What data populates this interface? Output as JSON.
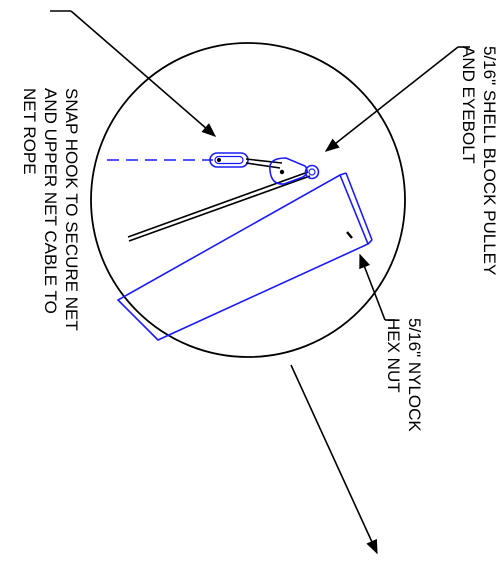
{
  "colors": {
    "background": "#ffffff",
    "ink": "#000000",
    "blue": "#1a1aff"
  },
  "callouts": {
    "snap_hook": {
      "lines": [
        "SNAP HOOK TO SECURE NET",
        "AND UPPER NET CABLE TO",
        "NET ROPE"
      ]
    },
    "shell_block": {
      "lines": [
        "5/16\" SHELL BLOCK PULLEY",
        "AND EYEBOLT"
      ]
    },
    "nylock_nut": {
      "lines": [
        "5/16\" NYLOCK",
        "HEX NUT"
      ]
    }
  }
}
